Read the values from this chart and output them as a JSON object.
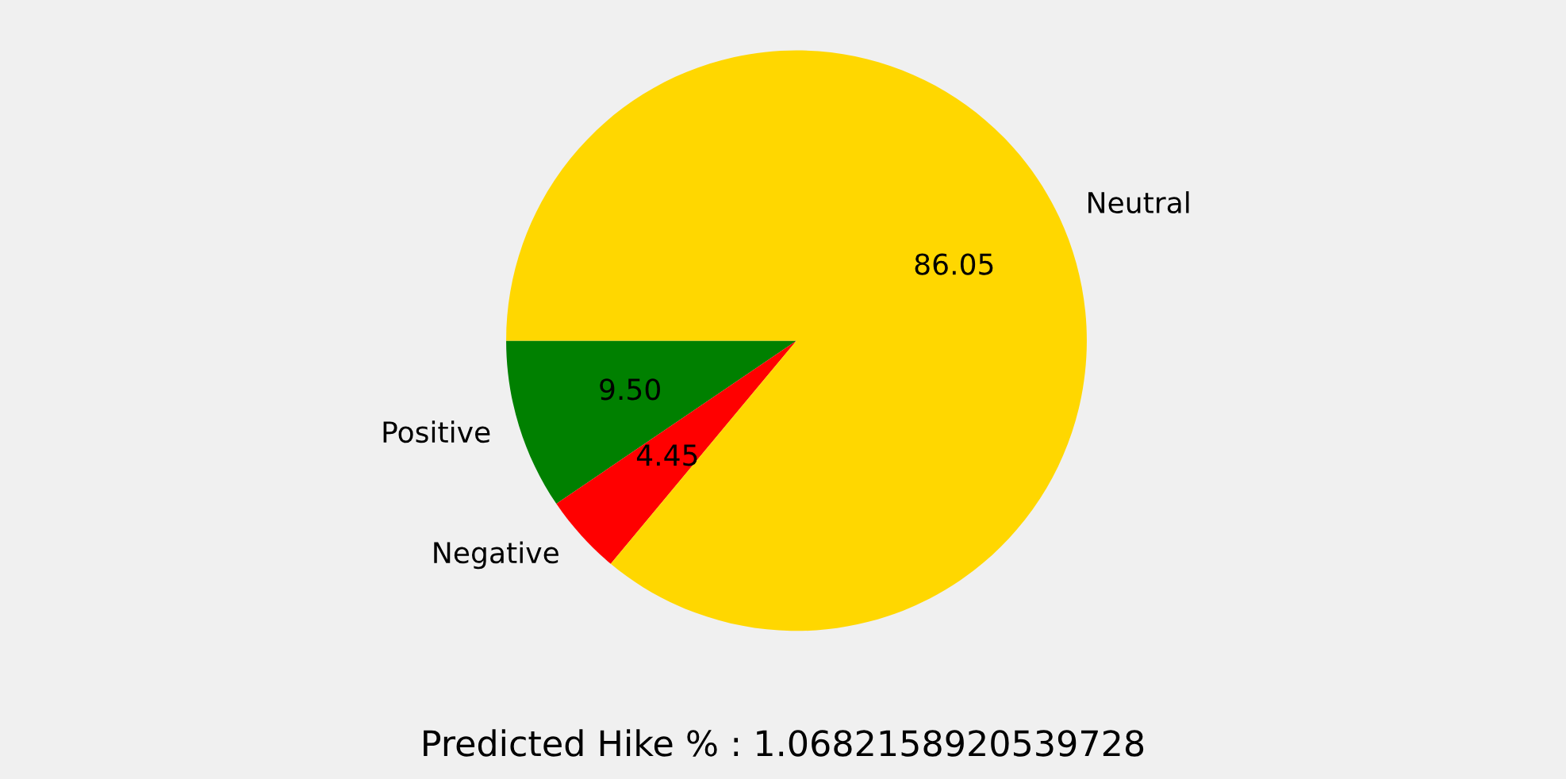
{
  "chart_data": {
    "type": "pie",
    "categories": [
      "Positive",
      "Negative",
      "Neutral"
    ],
    "values": [
      9.5,
      4.45,
      86.05
    ],
    "colors": [
      "#008000",
      "#ff0000",
      "#ffd700"
    ],
    "value_labels": [
      "9.50",
      "4.45",
      "86.05"
    ],
    "annotations": [
      "Predicted Hike % : 1.0682158920539728"
    ],
    "legend": false
  }
}
